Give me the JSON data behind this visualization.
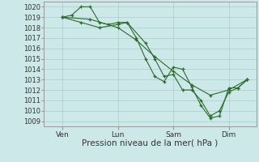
{
  "bg_color": "#cce8e8",
  "grid_color": "#aacccc",
  "line_color": "#2d6a2d",
  "marker_color": "#2d6a2d",
  "ylabel_ticks": [
    1009,
    1010,
    1011,
    1012,
    1013,
    1014,
    1015,
    1016,
    1017,
    1018,
    1019,
    1020
  ],
  "ylim": [
    1008.5,
    1020.5
  ],
  "xlabel": "Pression niveau de la mer( hPa )",
  "xtick_labels": [
    "Ven",
    "Lun",
    "Sam",
    "Dim"
  ],
  "xtick_positions": [
    1,
    4,
    7,
    10
  ],
  "xlim": [
    0,
    11.5
  ],
  "lines": [
    [
      1,
      1019.0,
      1.5,
      1019.2,
      2.0,
      1020.0,
      2.5,
      1020.0,
      3.0,
      1018.5,
      3.5,
      1018.3,
      4.0,
      1018.5,
      4.5,
      1018.5,
      5.0,
      1017.0,
      5.5,
      1015.0,
      6.0,
      1013.3,
      6.5,
      1012.8,
      7.0,
      1014.2,
      7.5,
      1014.0,
      8.0,
      1012.3,
      8.5,
      1010.5,
      9.0,
      1009.3,
      9.5,
      1009.5,
      10.0,
      1012.2,
      10.5,
      1012.2,
      11.0,
      1013.0
    ],
    [
      1,
      1019.0,
      2.0,
      1018.5,
      3.0,
      1018.0,
      4.0,
      1018.3,
      4.5,
      1018.5,
      5.5,
      1016.5,
      6.0,
      1015.0,
      6.5,
      1013.3,
      7.0,
      1013.5,
      7.5,
      1012.0,
      8.0,
      1012.0,
      8.5,
      1011.0,
      9.0,
      1009.5,
      9.5,
      1010.0,
      10.0,
      1011.8,
      10.5,
      1012.2,
      11.0,
      1013.0
    ],
    [
      1,
      1019.0,
      2.5,
      1018.8,
      4.0,
      1018.0,
      5.0,
      1016.8,
      6.0,
      1015.2,
      7.0,
      1013.8,
      8.0,
      1012.5,
      9.0,
      1011.5,
      10.0,
      1012.0,
      11.0,
      1013.0
    ]
  ]
}
